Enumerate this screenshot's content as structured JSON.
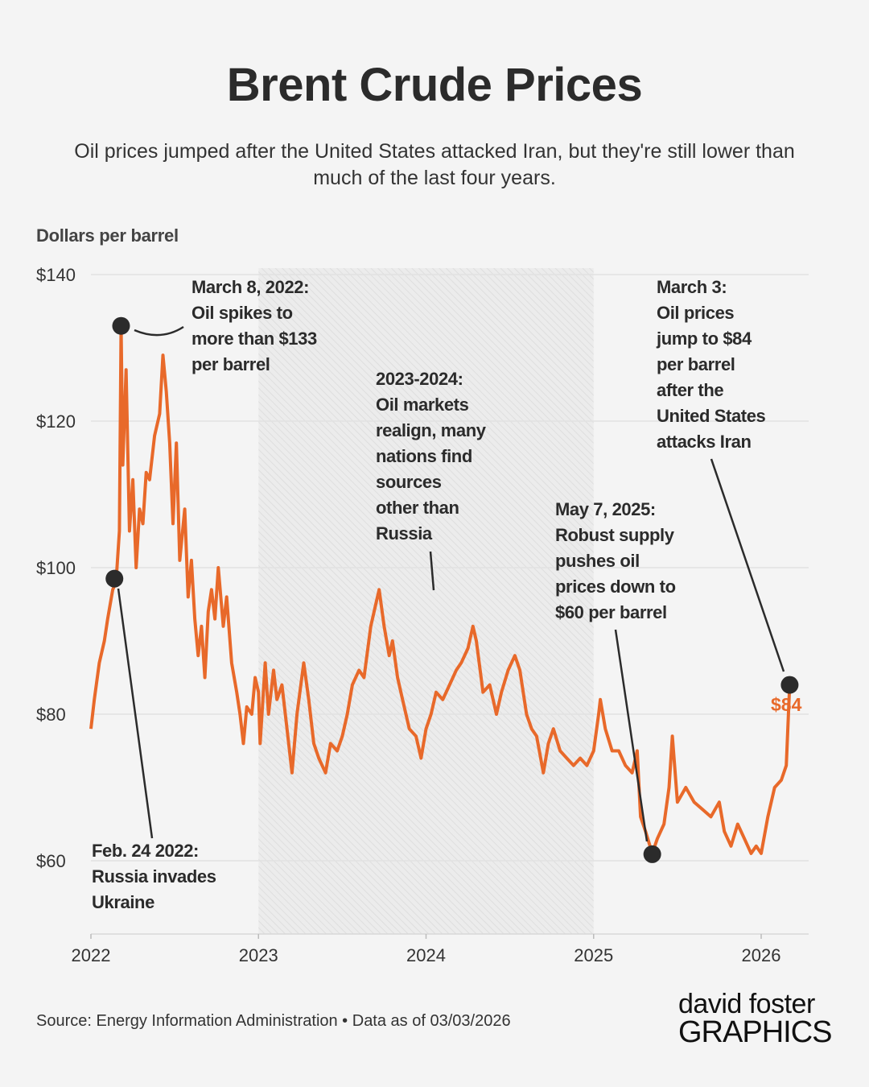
{
  "chart_data": {
    "type": "line",
    "title": "Brent Crude Prices",
    "subtitle": "Oil prices jumped after the United States attacked Iran, but they're still lower than much of the last four years.",
    "ylabel": "Dollars per barrel",
    "xlabel": "",
    "ylim": [
      50,
      140
    ],
    "xlim": [
      2022,
      2026.3
    ],
    "yticks": [
      {
        "value": 140,
        "label": "$140"
      },
      {
        "value": 120,
        "label": "$120"
      },
      {
        "value": 100,
        "label": "$100"
      },
      {
        "value": 80,
        "label": "$80"
      },
      {
        "value": 60,
        "label": "$60"
      }
    ],
    "xticks": [
      {
        "value": 2022,
        "label": "2022"
      },
      {
        "value": 2023,
        "label": "2023"
      },
      {
        "value": 2024,
        "label": "2024"
      },
      {
        "value": 2025,
        "label": "2025"
      },
      {
        "value": 2026,
        "label": "2026"
      }
    ],
    "grid": true,
    "shaded_range": [
      2023,
      2025
    ],
    "series": [
      {
        "name": "Brent crude price",
        "color": "#e8692a",
        "x": [
          2022.0,
          2022.02,
          2022.05,
          2022.08,
          2022.1,
          2022.13,
          2022.15,
          2022.17,
          2022.18,
          2022.19,
          2022.21,
          2022.23,
          2022.25,
          2022.27,
          2022.29,
          2022.31,
          2022.33,
          2022.35,
          2022.38,
          2022.41,
          2022.43,
          2022.45,
          2022.47,
          2022.49,
          2022.51,
          2022.53,
          2022.56,
          2022.58,
          2022.6,
          2022.62,
          2022.64,
          2022.66,
          2022.68,
          2022.7,
          2022.72,
          2022.74,
          2022.76,
          2022.79,
          2022.81,
          2022.84,
          2022.87,
          2022.89,
          2022.91,
          2022.93,
          2022.96,
          2022.98,
          2023.0,
          2023.01,
          2023.04,
          2023.06,
          2023.09,
          2023.11,
          2023.14,
          2023.17,
          2023.2,
          2023.23,
          2023.27,
          2023.3,
          2023.33,
          2023.36,
          2023.4,
          2023.43,
          2023.47,
          2023.5,
          2023.53,
          2023.56,
          2023.6,
          2023.63,
          2023.67,
          2023.7,
          2023.72,
          2023.75,
          2023.78,
          2023.8,
          2023.83,
          2023.86,
          2023.9,
          2023.94,
          2023.97,
          2024.0,
          2024.03,
          2024.06,
          2024.1,
          2024.14,
          2024.18,
          2024.21,
          2024.25,
          2024.28,
          2024.3,
          2024.34,
          2024.38,
          2024.42,
          2024.45,
          2024.49,
          2024.53,
          2024.56,
          2024.6,
          2024.63,
          2024.66,
          2024.7,
          2024.73,
          2024.76,
          2024.8,
          2024.84,
          2024.88,
          2024.92,
          2024.96,
          2025.0,
          2025.03,
          2025.04,
          2025.07,
          2025.11,
          2025.15,
          2025.19,
          2025.23,
          2025.26,
          2025.28,
          2025.31,
          2025.35,
          2025.38,
          2025.42,
          2025.45,
          2025.47,
          2025.5,
          2025.55,
          2025.6,
          2025.65,
          2025.7,
          2025.75,
          2025.78,
          2025.82,
          2025.86,
          2025.9,
          2025.94,
          2025.97,
          2026.0,
          2026.04,
          2026.08,
          2026.12,
          2026.15,
          2026.17
        ],
        "values": [
          78,
          82,
          87,
          90,
          93,
          97,
          98,
          105,
          133,
          114,
          127,
          105,
          112,
          100,
          108,
          106,
          113,
          112,
          118,
          121,
          129,
          124,
          117,
          106,
          117,
          101,
          108,
          96,
          101,
          93,
          88,
          92,
          85,
          94,
          97,
          93,
          100,
          92,
          96,
          87,
          83,
          80,
          76,
          81,
          80,
          85,
          83,
          76,
          87,
          80,
          86,
          82,
          84,
          78,
          72,
          80,
          87,
          82,
          76,
          74,
          72,
          76,
          75,
          77,
          80,
          84,
          86,
          85,
          92,
          95,
          97,
          92,
          88,
          90,
          85,
          82,
          78,
          77,
          74,
          78,
          80,
          83,
          82,
          84,
          86,
          87,
          89,
          92,
          90,
          83,
          84,
          80,
          83,
          86,
          88,
          86,
          80,
          78,
          77,
          72,
          76,
          78,
          75,
          74,
          73,
          74,
          73,
          75,
          80,
          82,
          78,
          75,
          75,
          73,
          72,
          75,
          66,
          64,
          61,
          63,
          65,
          70,
          77,
          68,
          70,
          68,
          67,
          66,
          68,
          64,
          62,
          65,
          63,
          61,
          62,
          61,
          66,
          70,
          71,
          73,
          84
        ]
      }
    ],
    "annotations": [
      {
        "id": "spike",
        "lines": [
          "March 8, 2022:",
          "Oil spikes to",
          "more than $133",
          "per barrel"
        ],
        "x": 2022.18,
        "y": 133
      },
      {
        "id": "invasion",
        "lines": [
          "Feb. 24 2022:",
          "Russia invades",
          "Ukraine"
        ],
        "x": 2022.15,
        "y": 98.5
      },
      {
        "id": "realign",
        "lines": [
          "2023-2024:",
          "Oil markets",
          "realign, many",
          "nations find",
          "sources",
          "other than",
          "Russia"
        ]
      },
      {
        "id": "supply",
        "lines": [
          "May 7, 2025:",
          "Robust supply",
          "pushes oil",
          "prices down to",
          "$60 per barrel"
        ],
        "x": 2025.35,
        "y": 61
      },
      {
        "id": "iran",
        "lines": [
          "March 3:",
          "Oil prices",
          "jump to $84",
          "per barrel",
          "after the",
          "United States",
          "attacks Iran"
        ],
        "x": 2026.17,
        "y": 84
      }
    ],
    "last_value_label": "$84"
  },
  "footer": {
    "source": "Source: Energy Information Administration • Data as of 03/03/2026",
    "logo_line1": "david foster",
    "logo_line2": "GRAPHICS"
  }
}
